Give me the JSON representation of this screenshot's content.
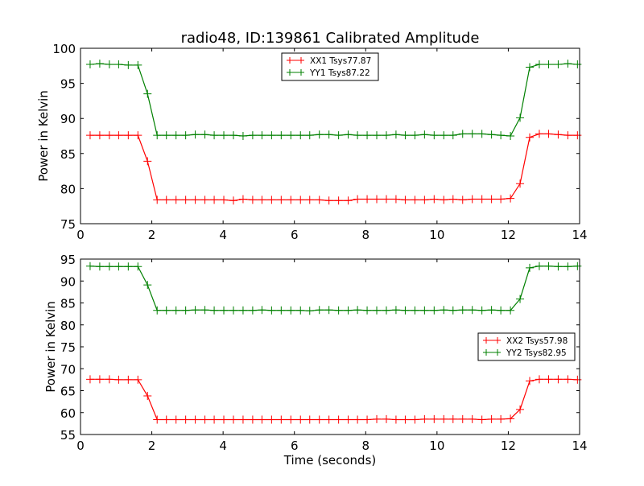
{
  "chart_data": [
    {
      "type": "line",
      "title": "radio48, ID:139861 Calibrated Amplitude",
      "xlabel": "",
      "ylabel": "Power in Kelvin",
      "xlim": [
        0,
        14
      ],
      "ylim": [
        75,
        100
      ],
      "xticks": [
        "0",
        "2",
        "4",
        "6",
        "8",
        "10",
        "12",
        "14"
      ],
      "yticks": [
        "75",
        "80",
        "85",
        "90",
        "95",
        "100"
      ],
      "legend_position": "upper-center",
      "x": [
        0.27,
        0.54,
        0.81,
        1.07,
        1.34,
        1.61,
        1.88,
        2.15,
        2.41,
        2.68,
        2.95,
        3.22,
        3.49,
        3.75,
        4.02,
        4.29,
        4.56,
        4.83,
        5.09,
        5.36,
        5.63,
        5.9,
        6.17,
        6.43,
        6.7,
        6.97,
        7.24,
        7.51,
        7.77,
        8.04,
        8.31,
        8.58,
        8.85,
        9.11,
        9.38,
        9.65,
        9.92,
        10.19,
        10.45,
        10.72,
        10.99,
        11.26,
        11.53,
        11.79,
        12.06,
        12.33,
        12.6,
        12.87,
        13.13,
        13.4,
        13.67,
        13.94
      ],
      "series": [
        {
          "name": "XX1 Tsys77.87",
          "color": "#ff0000",
          "values": [
            87.6,
            87.6,
            87.6,
            87.6,
            87.6,
            87.6,
            83.9,
            78.4,
            78.4,
            78.4,
            78.4,
            78.4,
            78.4,
            78.4,
            78.4,
            78.3,
            78.5,
            78.4,
            78.4,
            78.4,
            78.4,
            78.4,
            78.4,
            78.4,
            78.4,
            78.3,
            78.3,
            78.3,
            78.5,
            78.5,
            78.5,
            78.5,
            78.5,
            78.4,
            78.4,
            78.4,
            78.5,
            78.4,
            78.5,
            78.4,
            78.5,
            78.5,
            78.5,
            78.5,
            78.6,
            80.7,
            87.3,
            87.8,
            87.8,
            87.7,
            87.6,
            87.6
          ]
        },
        {
          "name": "YY1 Tsys87.22",
          "color": "#008000",
          "values": [
            97.7,
            97.8,
            97.7,
            97.7,
            97.6,
            97.6,
            93.5,
            87.6,
            87.6,
            87.6,
            87.6,
            87.7,
            87.7,
            87.6,
            87.6,
            87.6,
            87.5,
            87.6,
            87.6,
            87.6,
            87.6,
            87.6,
            87.6,
            87.6,
            87.7,
            87.7,
            87.6,
            87.7,
            87.6,
            87.6,
            87.6,
            87.6,
            87.7,
            87.6,
            87.6,
            87.7,
            87.6,
            87.6,
            87.6,
            87.8,
            87.8,
            87.8,
            87.7,
            87.6,
            87.5,
            90.1,
            97.3,
            97.7,
            97.7,
            97.7,
            97.8,
            97.7
          ]
        }
      ]
    },
    {
      "type": "line",
      "title": "",
      "xlabel": "Time (seconds)",
      "ylabel": "Power in Kelvin",
      "xlim": [
        0,
        14
      ],
      "ylim": [
        55,
        95
      ],
      "xticks": [
        "0",
        "2",
        "4",
        "6",
        "8",
        "10",
        "12",
        "14"
      ],
      "yticks": [
        "55",
        "60",
        "65",
        "70",
        "75",
        "80",
        "85",
        "90",
        "95"
      ],
      "legend_position": "center-right",
      "x": [
        0.27,
        0.54,
        0.81,
        1.07,
        1.34,
        1.61,
        1.88,
        2.15,
        2.41,
        2.68,
        2.95,
        3.22,
        3.49,
        3.75,
        4.02,
        4.29,
        4.56,
        4.83,
        5.09,
        5.36,
        5.63,
        5.9,
        6.17,
        6.43,
        6.7,
        6.97,
        7.24,
        7.51,
        7.77,
        8.04,
        8.31,
        8.58,
        8.85,
        9.11,
        9.38,
        9.65,
        9.92,
        10.19,
        10.45,
        10.72,
        10.99,
        11.26,
        11.53,
        11.79,
        12.06,
        12.33,
        12.6,
        12.87,
        13.13,
        13.4,
        13.67,
        13.94
      ],
      "series": [
        {
          "name": "XX2 Tsys57.98",
          "color": "#ff0000",
          "values": [
            67.6,
            67.6,
            67.6,
            67.5,
            67.5,
            67.5,
            63.8,
            58.4,
            58.4,
            58.4,
            58.4,
            58.4,
            58.4,
            58.4,
            58.4,
            58.4,
            58.4,
            58.4,
            58.4,
            58.4,
            58.4,
            58.4,
            58.4,
            58.4,
            58.4,
            58.4,
            58.4,
            58.4,
            58.4,
            58.4,
            58.5,
            58.5,
            58.4,
            58.4,
            58.4,
            58.5,
            58.5,
            58.5,
            58.5,
            58.5,
            58.5,
            58.4,
            58.5,
            58.5,
            58.6,
            60.7,
            67.2,
            67.6,
            67.6,
            67.6,
            67.6,
            67.5
          ]
        },
        {
          "name": "YY2 Tsys82.95",
          "color": "#008000",
          "values": [
            93.4,
            93.3,
            93.3,
            93.3,
            93.3,
            93.3,
            89.1,
            83.3,
            83.3,
            83.3,
            83.3,
            83.4,
            83.4,
            83.3,
            83.3,
            83.3,
            83.3,
            83.3,
            83.4,
            83.3,
            83.3,
            83.3,
            83.3,
            83.2,
            83.4,
            83.4,
            83.3,
            83.3,
            83.4,
            83.3,
            83.3,
            83.3,
            83.4,
            83.3,
            83.3,
            83.3,
            83.3,
            83.4,
            83.3,
            83.4,
            83.4,
            83.3,
            83.4,
            83.3,
            83.3,
            85.9,
            93.0,
            93.4,
            93.4,
            93.3,
            93.3,
            93.4
          ]
        }
      ]
    }
  ]
}
